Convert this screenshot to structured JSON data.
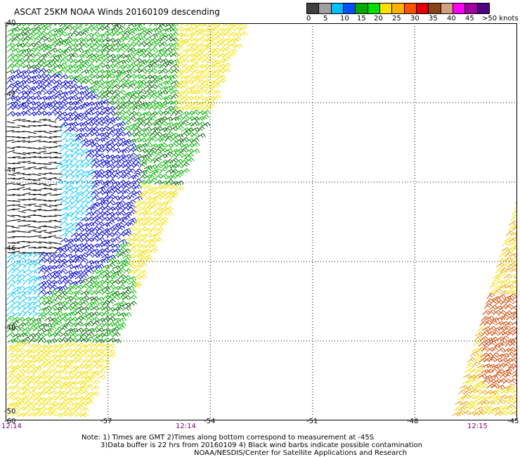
{
  "title": "ASCAT 25KM NOAA Winds 20160109 descending",
  "legend": {
    "segments": [
      {
        "color": "#404040"
      },
      {
        "color": "#a0a0a0"
      },
      {
        "color": "#00bfff"
      },
      {
        "color": "#0050ff"
      },
      {
        "color": "#00aa00"
      },
      {
        "color": "#00e000"
      },
      {
        "color": "#ffe000"
      },
      {
        "color": "#ffb000"
      },
      {
        "color": "#ff5000"
      },
      {
        "color": "#e00000"
      },
      {
        "color": "#8b4513"
      },
      {
        "color": "#d2a080"
      },
      {
        "color": "#ff00ff"
      },
      {
        "color": "#a000a0"
      },
      {
        "color": "#500080"
      }
    ],
    "labels": [
      "0",
      "5",
      "10",
      "15",
      "20",
      "25",
      "30",
      "35",
      "40",
      "45",
      ">50 knots"
    ]
  },
  "map": {
    "lat_labels": [
      "-40",
      "-42",
      "-44",
      "-46",
      "-48",
      "-50"
    ],
    "lon_labels": [
      "-60",
      "-57",
      "-54",
      "-51",
      "-48",
      "-45"
    ],
    "lat_range": [
      -50,
      -40
    ],
    "lon_range": [
      -60,
      -45
    ],
    "grid": "dotted"
  },
  "time_labels": [
    "12:14",
    "12:14",
    "12:15"
  ],
  "notes": [
    "Note: 1) Times are GMT 2)Times along bottom correspond to measurement at -45S",
    "3)Data buffer is 22 hrs from 20160109 4) Black wind barbs indicate possible contamination",
    "NOAA/NESDIS/Center for Satellite Applications and Research"
  ],
  "wind_colors": {
    "black": "#000000",
    "cyan": "#00c8ff",
    "blue": "#0000cc",
    "green": "#00b400",
    "dkgreen": "#006400",
    "yellow": "#f0e000",
    "orange": "#e8a000",
    "red": "#cc4400"
  }
}
